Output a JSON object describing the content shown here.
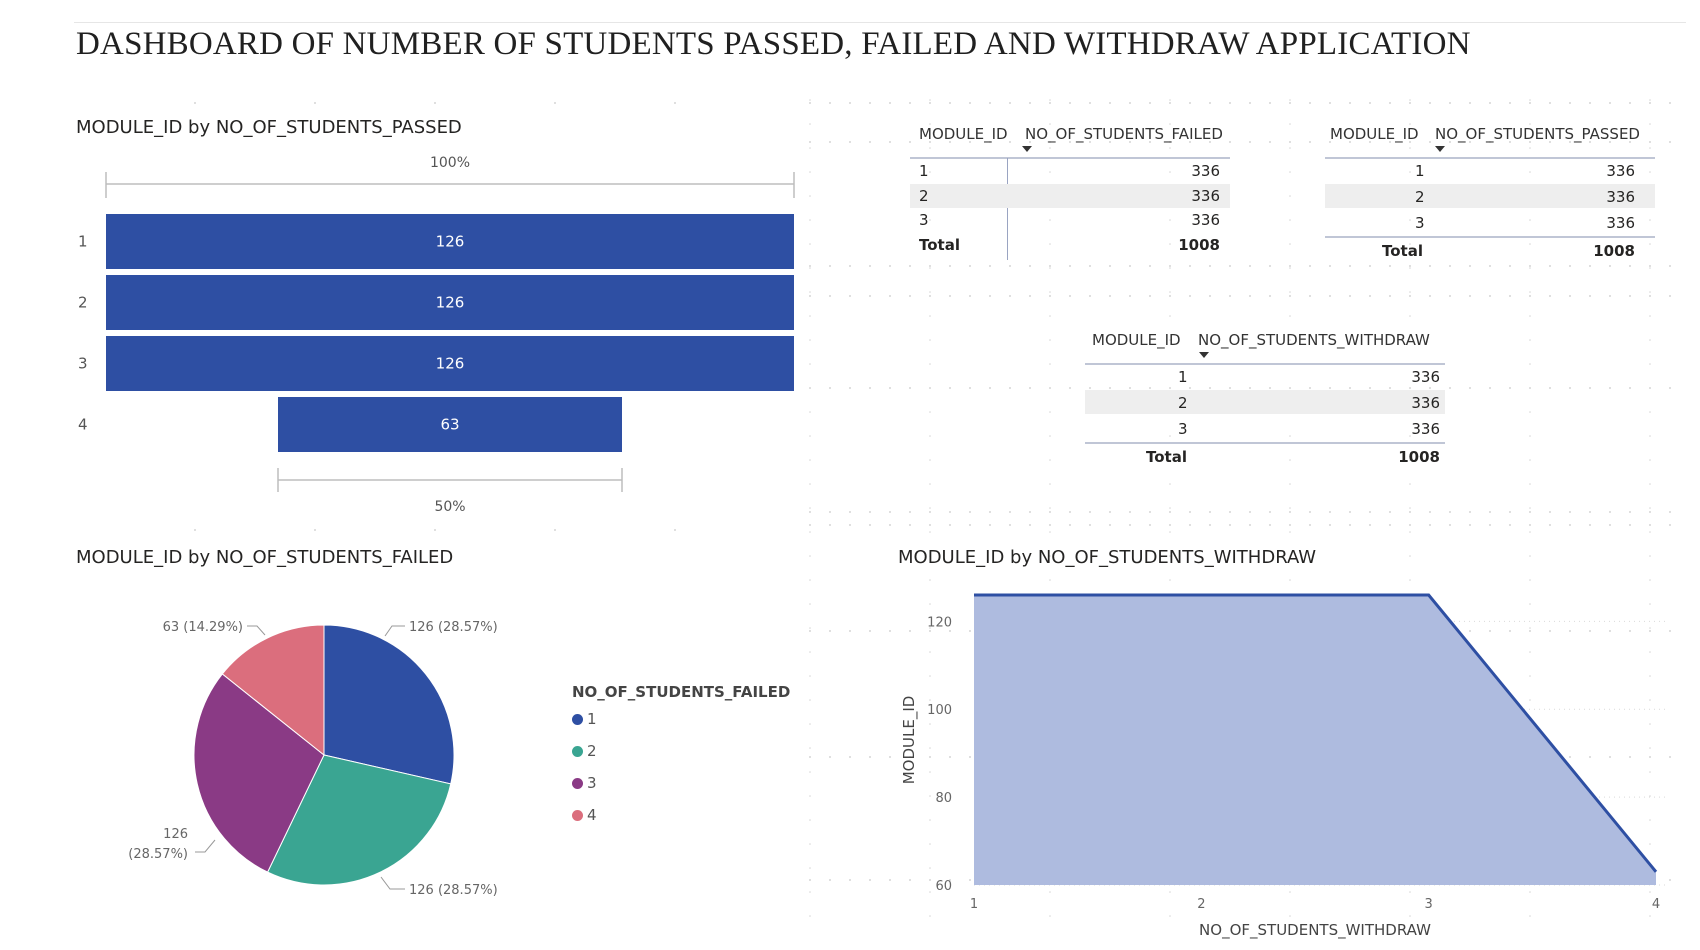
{
  "page": {
    "title": "DASHBOARD OF NUMBER OF STUDENTS PASSED, FAILED AND WITHDRAW APPLICATION"
  },
  "colors": {
    "blue": "#2E4FA3",
    "teal": "#3AA592",
    "purple": "#8A3A85",
    "pink": "#DB6E7D",
    "area_fill": "#AEBBDF",
    "area_line": "#2E4FA3"
  },
  "funnel": {
    "title": "MODULE_ID by NO_OF_STUDENTS_PASSED",
    "top_pct": "100%",
    "bottom_pct": "50%"
  },
  "pie": {
    "title": "MODULE_ID by NO_OF_STUDENTS_FAILED",
    "legend_title": "NO_OF_STUDENTS_FAILED",
    "label_top_right": "126 (28.57%)",
    "label_top_left": "63 (14.29%)",
    "label_left_value": "126",
    "label_left_pct": "(28.57%)",
    "label_bottom": "126 (28.57%)"
  },
  "area": {
    "title": "MODULE_ID by NO_OF_STUDENTS_WITHDRAW",
    "xlabel": "NO_OF_STUDENTS_WITHDRAW",
    "ylabel": "MODULE_ID"
  },
  "table_failed": {
    "headers": [
      "MODULE_ID",
      "NO_OF_STUDENTS_FAILED"
    ],
    "rows": [
      [
        "1",
        "336"
      ],
      [
        "2",
        "336"
      ],
      [
        "3",
        "336"
      ]
    ],
    "total": [
      "Total",
      "1008"
    ]
  },
  "table_passed": {
    "headers": [
      "MODULE_ID",
      "NO_OF_STUDENTS_PASSED"
    ],
    "rows": [
      [
        "1",
        "336"
      ],
      [
        "2",
        "336"
      ],
      [
        "3",
        "336"
      ]
    ],
    "total": [
      "Total",
      "1008"
    ]
  },
  "table_withdraw": {
    "headers": [
      "MODULE_ID",
      "NO_OF_STUDENTS_WITHDRAW"
    ],
    "rows": [
      [
        "1",
        "336"
      ],
      [
        "2",
        "336"
      ],
      [
        "3",
        "336"
      ]
    ],
    "total": [
      "Total",
      "1008"
    ]
  },
  "chart_data": [
    {
      "type": "bar",
      "subtype": "funnel",
      "title": "MODULE_ID by NO_OF_STUDENTS_PASSED",
      "categories": [
        "1",
        "2",
        "3",
        "4"
      ],
      "values": [
        126,
        126,
        126,
        63
      ],
      "data_labels": [
        "126",
        "126",
        "126",
        "63"
      ]
    },
    {
      "type": "pie",
      "title": "MODULE_ID by NO_OF_STUDENTS_FAILED",
      "legend_title": "NO_OF_STUDENTS_FAILED",
      "legend_position": "right",
      "categories": [
        "1",
        "2",
        "3",
        "4"
      ],
      "values": [
        126,
        126,
        126,
        63
      ],
      "percents": [
        28.57,
        28.57,
        28.57,
        14.29
      ]
    },
    {
      "type": "area",
      "title": "MODULE_ID by NO_OF_STUDENTS_WITHDRAW",
      "xlabel": "NO_OF_STUDENTS_WITHDRAW",
      "ylabel": "MODULE_ID",
      "x": [
        1,
        2,
        3,
        4
      ],
      "y": [
        126,
        126,
        126,
        63
      ],
      "x_ticks": [
        "1",
        "2",
        "3",
        "4"
      ],
      "y_ticks": [
        "60",
        "80",
        "100",
        "120"
      ],
      "ylim": [
        60,
        126
      ],
      "grid": true
    },
    {
      "type": "table",
      "columns": [
        "MODULE_ID",
        "NO_OF_STUDENTS_FAILED"
      ],
      "rows": [
        [
          "1",
          336
        ],
        [
          "2",
          336
        ],
        [
          "3",
          336
        ]
      ],
      "total": 1008
    },
    {
      "type": "table",
      "columns": [
        "MODULE_ID",
        "NO_OF_STUDENTS_PASSED"
      ],
      "rows": [
        [
          "1",
          336
        ],
        [
          "2",
          336
        ],
        [
          "3",
          336
        ]
      ],
      "total": 1008
    },
    {
      "type": "table",
      "columns": [
        "MODULE_ID",
        "NO_OF_STUDENTS_WITHDRAW"
      ],
      "rows": [
        [
          "1",
          336
        ],
        [
          "2",
          336
        ],
        [
          "3",
          336
        ]
      ],
      "total": 1008
    }
  ]
}
